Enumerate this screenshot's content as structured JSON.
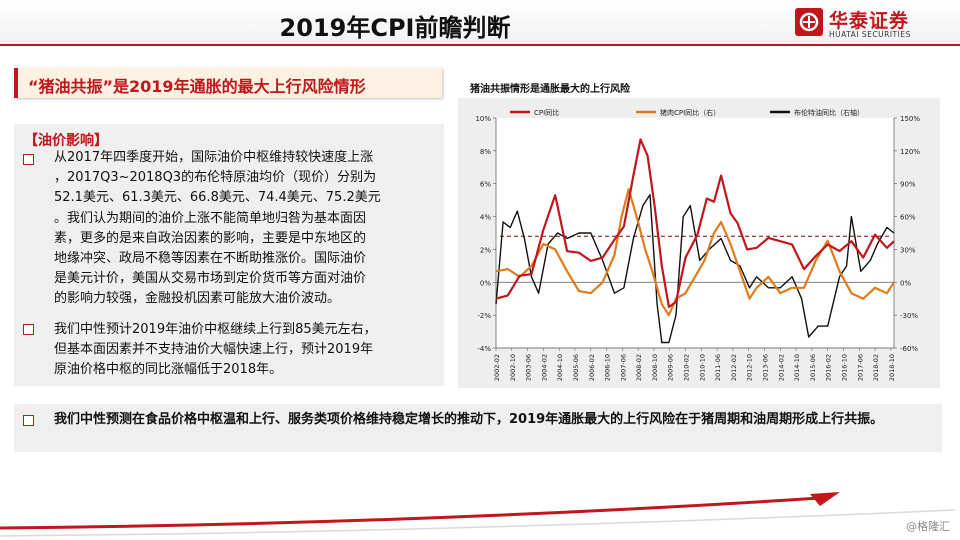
{
  "header": {
    "title": "2019年CPI前瞻判断",
    "logo_cn": "华泰证券",
    "logo_en": "HUATAI SECURITIES"
  },
  "subtitle": "“猪油共振”是2019年通胀的最大上行风险情形",
  "oil_section": {
    "heading": "【油价影响】",
    "para1_lines": [
      "从2017年四季度开始，国际油价中枢维持较快速度上涨",
      "，2017Q3~2018Q3的布伦特原油均价（现价）分别为",
      "52.1美元、61.3美元、66.8美元、74.4美元、75.2美元",
      "。我们认为期间的油价上涨不能简单地归咎为基本面因",
      "素，更多的是来自政治因素的影响，主要是中东地区的",
      "地缘冲突、政局不稳等因素在不断助推涨价。国际油价",
      "是美元计价，美国从交易市场到定价货币等方面对油价",
      "的影响力较强，金融投机因素可能放大油价波动。"
    ],
    "para2_lines": [
      "我们中性预计2019年油价中枢继续上行到85美元左右，",
      "但基本面因素并不支持油价大幅快速上行，预计2019年",
      "原油价格中枢的同比涨幅低于2018年。"
    ]
  },
  "conclusion": "我们中性预测在食品价格中枢温和上行、服务类项价格维持稳定增长的推动下，2019年通胀最大的上行风险在于猪周期和油周期形成上行共振。",
  "watermark": "@格隆汇",
  "colors": {
    "accent": "#c0161c",
    "cpi": "#c0161c",
    "pork": "#e07b1c",
    "oil": "#111111"
  },
  "chart_data": {
    "type": "line",
    "title": "猪油共振情形是通胀最大的上行风险",
    "legend": [
      "CPI同比",
      "猪肉CPI同比（右）",
      "布伦特油同比（右轴）"
    ],
    "legend_position": "top",
    "ylim_left": [
      -4,
      10
    ],
    "yticks_left": [
      "10%",
      "8%",
      "6%",
      "4%",
      "2%",
      "0%",
      "-2%",
      "-4%"
    ],
    "ylim_right": [
      -60,
      150
    ],
    "yticks_right": [
      "150%",
      "120%",
      "90%",
      "60%",
      "30%",
      "0%",
      "-30%",
      "-60%"
    ],
    "x_ticks": [
      "2002-02",
      "2002-10",
      "2003-06",
      "2004-02",
      "2004-10",
      "2005-06",
      "2006-02",
      "2006-10",
      "2007-06",
      "2008-02",
      "2008-10",
      "2009-06",
      "2010-02",
      "2010-10",
      "2011-06",
      "2012-02",
      "2012-10",
      "2013-06",
      "2014-02",
      "2014-10",
      "2015-06",
      "2016-02",
      "2016-10",
      "2017-06",
      "2018-02",
      "2018-10"
    ],
    "reference_line_left": 2.8,
    "series": [
      {
        "name": "CPI同比",
        "axis": "left",
        "x": [
          2002.0,
          2002.5,
          2003.0,
          2003.5,
          2004.0,
          2004.5,
          2005.0,
          2005.5,
          2006.0,
          2006.5,
          2007.0,
          2007.4,
          2007.8,
          2008.1,
          2008.4,
          2008.7,
          2009.0,
          2009.3,
          2009.6,
          2010.0,
          2010.5,
          2010.9,
          2011.2,
          2011.5,
          2011.9,
          2012.2,
          2012.6,
          2013.0,
          2013.5,
          2014.0,
          2014.5,
          2015.0,
          2015.5,
          2016.0,
          2016.5,
          2017.0,
          2017.5,
          2018.0,
          2018.5,
          2018.8
        ],
        "y": [
          -1,
          -0.8,
          0.4,
          0.5,
          3.2,
          5.3,
          1.9,
          1.8,
          1.3,
          1.5,
          2.6,
          3.4,
          6.5,
          8.7,
          7.7,
          4.6,
          1.0,
          -1.5,
          -1.2,
          1.5,
          2.9,
          5.1,
          4.9,
          6.5,
          4.2,
          3.6,
          2.0,
          2.1,
          2.7,
          2.5,
          2.3,
          0.8,
          1.6,
          2.3,
          1.9,
          2.5,
          1.5,
          2.9,
          2.1,
          2.5
        ]
      },
      {
        "name": "猪肉CPI同比（右）",
        "axis": "right",
        "x": [
          2002.0,
          2002.5,
          2003.0,
          2003.5,
          2004.0,
          2004.5,
          2005.0,
          2005.5,
          2006.0,
          2006.5,
          2007.0,
          2007.3,
          2007.6,
          2008.0,
          2008.3,
          2008.6,
          2009.0,
          2009.3,
          2009.6,
          2010.0,
          2010.4,
          2010.8,
          2011.2,
          2011.5,
          2011.9,
          2012.3,
          2012.7,
          2013.0,
          2013.5,
          2014.0,
          2014.5,
          2015.0,
          2015.5,
          2016.0,
          2016.5,
          2017.0,
          2017.5,
          2018.0,
          2018.5,
          2018.8
        ],
        "y": [
          10,
          12,
          5,
          15,
          35,
          30,
          10,
          -8,
          -10,
          0,
          25,
          60,
          85,
          55,
          30,
          10,
          -20,
          -30,
          -15,
          -10,
          5,
          20,
          45,
          55,
          35,
          10,
          -15,
          -5,
          5,
          -10,
          -5,
          -5,
          20,
          38,
          10,
          -10,
          -15,
          -5,
          -10,
          0
        ]
      },
      {
        "name": "布伦特油同比（右轴）",
        "axis": "right",
        "x": [
          2002.0,
          2002.3,
          2002.6,
          2002.9,
          2003.2,
          2003.5,
          2003.8,
          2004.2,
          2004.6,
          2005.0,
          2005.5,
          2006.0,
          2006.5,
          2007.0,
          2007.4,
          2007.8,
          2008.2,
          2008.5,
          2008.8,
          2009.0,
          2009.3,
          2009.6,
          2009.9,
          2010.2,
          2010.6,
          2011.0,
          2011.5,
          2011.9,
          2012.3,
          2012.7,
          2013.0,
          2013.5,
          2014.0,
          2014.5,
          2014.9,
          2015.2,
          2015.6,
          2016.0,
          2016.5,
          2016.8,
          2017.0,
          2017.4,
          2017.8,
          2018.1,
          2018.5,
          2018.8
        ],
        "y": [
          -20,
          55,
          50,
          65,
          40,
          5,
          -10,
          35,
          45,
          40,
          45,
          45,
          20,
          -10,
          -5,
          40,
          70,
          80,
          -20,
          -55,
          -55,
          -30,
          60,
          70,
          20,
          30,
          40,
          20,
          15,
          -5,
          5,
          -5,
          -5,
          5,
          -15,
          -50,
          -40,
          -40,
          5,
          15,
          60,
          10,
          20,
          35,
          50,
          45
        ]
      }
    ]
  }
}
